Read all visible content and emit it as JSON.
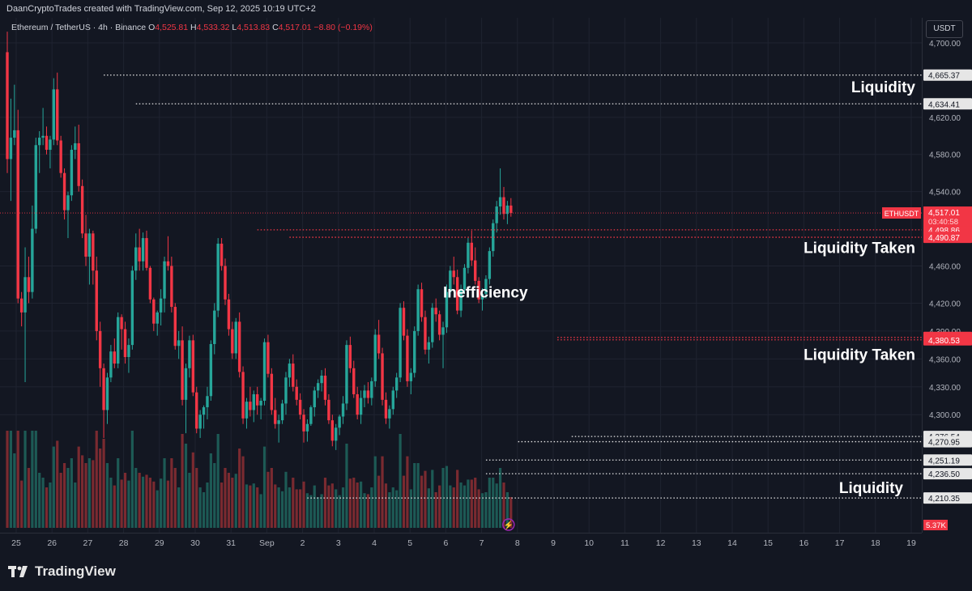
{
  "attribution": "DaanCryptoTrades created with TradingView.com, Sep 12, 2025 10:19 UTC+2",
  "legend": {
    "symbol": "Ethereum / TetherUS · 4h · Binance",
    "o_label": "O",
    "o": "4,525.81",
    "h_label": "H",
    "h": "4,533.32",
    "l_label": "L",
    "l": "4,513.83",
    "c_label": "C",
    "c": "4,517.01",
    "change": "−8.80 (−0.19%)"
  },
  "currency_button": "USDT",
  "brand": "TradingView",
  "brand_icon": "tradingview-logo-icon",
  "colors": {
    "up": "#26a69a",
    "down": "#f23645",
    "background": "#131722",
    "grid": "#1f2330"
  },
  "chart_data": {
    "type": "candlestick",
    "symbol": "ETHUSDT",
    "timeframe": "4h",
    "ylim": [
      4180,
      4720
    ],
    "x_ticks": [
      "25",
      "26",
      "27",
      "28",
      "29",
      "30",
      "31",
      "Sep",
      "2",
      "3",
      "4",
      "5",
      "6",
      "7",
      "8",
      "9",
      "10",
      "11",
      "12",
      "13",
      "14",
      "15",
      "16",
      "17",
      "18",
      "19"
    ],
    "y_ticks": [
      "4,700.00",
      "4,620.00",
      "4,580.00",
      "4,540.00",
      "4,460.00",
      "4,420.00",
      "4,390.00",
      "4,360.00",
      "4,330.00",
      "4,300.00"
    ],
    "y_tick_values": [
      4700,
      4620,
      4580,
      4540,
      4460,
      4420,
      4390,
      4360,
      4330,
      4300
    ],
    "price_tags": [
      {
        "text": "4,665.37",
        "value": 4665.37,
        "style": "level"
      },
      {
        "text": "4,634.41",
        "value": 4634.41,
        "style": "level"
      },
      {
        "text": "4,498.86",
        "value": 4498.86,
        "style": "red"
      },
      {
        "text": "4,490.87",
        "value": 4490.87,
        "style": "red"
      },
      {
        "text": "4,383.12",
        "value": 4383.12,
        "style": "red"
      },
      {
        "text": "4,380.53",
        "value": 4380.53,
        "style": "red"
      },
      {
        "text": "4,276.54",
        "value": 4276.54,
        "style": "level"
      },
      {
        "text": "4,270.95",
        "value": 4270.95,
        "style": "level"
      },
      {
        "text": "4,251.19",
        "value": 4251.19,
        "style": "level"
      },
      {
        "text": "4,236.50",
        "value": 4236.5,
        "style": "level"
      },
      {
        "text": "4,210.35",
        "value": 4210.35,
        "style": "level"
      }
    ],
    "current_price": {
      "symbol": "ETHUSDT",
      "price": "4,517.01",
      "value": 4517.01,
      "countdown": "03:40:58"
    },
    "volume_tag": "5.37K",
    "levels": [
      {
        "value": 4665.37,
        "color": "white",
        "start_bar": 27
      },
      {
        "value": 4634.41,
        "color": "white",
        "start_bar": 36
      },
      {
        "value": 4498.86,
        "color": "red",
        "start_bar": 70
      },
      {
        "value": 4490.87,
        "color": "red",
        "start_bar": 79
      },
      {
        "value": 4383.12,
        "color": "red",
        "start_bar": 154
      },
      {
        "value": 4380.53,
        "color": "red",
        "start_bar": 154
      },
      {
        "value": 4276.54,
        "color": "white",
        "start_bar": 158
      },
      {
        "value": 4270.95,
        "color": "white",
        "start_bar": 143
      },
      {
        "value": 4251.19,
        "color": "white",
        "start_bar": 134
      },
      {
        "value": 4236.5,
        "color": "white",
        "start_bar": 134
      },
      {
        "value": 4210.35,
        "color": "white",
        "start_bar": 84
      }
    ],
    "annotations": [
      {
        "text": "Liquidity",
        "value": 4653
      },
      {
        "text": "Liquidity Taken",
        "value": 4480
      },
      {
        "text": "Inefficiency",
        "value": 4432
      },
      {
        "text": "Liquidity Taken",
        "value": 4365
      },
      {
        "text": "Liquidity",
        "value": 4222
      }
    ],
    "ohlc": [
      [
        4690,
        4712,
        4560,
        4575
      ],
      [
        4575,
        4640,
        4530,
        4598
      ],
      [
        4598,
        4655,
        4590,
        4606
      ],
      [
        4606,
        4628,
        4420,
        4425
      ],
      [
        4425,
        4432,
        4395,
        4410
      ],
      [
        4410,
        4480,
        4335,
        4448
      ],
      [
        4448,
        4470,
        4420,
        4432
      ],
      [
        4432,
        4525,
        4425,
        4500
      ],
      [
        4500,
        4598,
        4495,
        4590
      ],
      [
        4590,
        4605,
        4560,
        4598
      ],
      [
        4598,
        4630,
        4590,
        4600
      ],
      [
        4600,
        4610,
        4580,
        4585
      ],
      [
        4585,
        4600,
        4565,
        4596
      ],
      [
        4596,
        4662,
        4590,
        4650
      ],
      [
        4650,
        4668,
        4590,
        4595
      ],
      [
        4595,
        4600,
        4555,
        4560
      ],
      [
        4560,
        4565,
        4510,
        4520
      ],
      [
        4520,
        4540,
        4490,
        4536
      ],
      [
        4536,
        4590,
        4530,
        4585
      ],
      [
        4585,
        4610,
        4575,
        4592
      ],
      [
        4592,
        4612,
        4540,
        4546
      ],
      [
        4546,
        4553,
        4490,
        4495
      ],
      [
        4495,
        4515,
        4460,
        4470
      ],
      [
        4470,
        4500,
        4440,
        4495
      ],
      [
        4495,
        4498,
        4440,
        4455
      ],
      [
        4455,
        4470,
        4380,
        4390
      ],
      [
        4390,
        4400,
        4330,
        4350
      ],
      [
        4350,
        4355,
        4275,
        4305
      ],
      [
        4305,
        4345,
        4290,
        4340
      ],
      [
        4340,
        4375,
        4335,
        4368
      ],
      [
        4368,
        4382,
        4350,
        4355
      ],
      [
        4355,
        4410,
        4350,
        4405
      ],
      [
        4405,
        4408,
        4370,
        4392
      ],
      [
        4392,
        4400,
        4355,
        4362
      ],
      [
        4362,
        4382,
        4345,
        4375
      ],
      [
        4375,
        4460,
        4370,
        4455
      ],
      [
        4455,
        4495,
        4445,
        4480
      ],
      [
        4480,
        4500,
        4455,
        4465
      ],
      [
        4465,
        4496,
        4455,
        4490
      ],
      [
        4490,
        4498,
        4455,
        4458
      ],
      [
        4458,
        4460,
        4420,
        4424
      ],
      [
        4424,
        4426,
        4390,
        4398
      ],
      [
        4398,
        4412,
        4385,
        4410
      ],
      [
        4410,
        4435,
        4396,
        4425
      ],
      [
        4425,
        4470,
        4410,
        4465
      ],
      [
        4465,
        4492,
        4455,
        4460
      ],
      [
        4460,
        4470,
        4410,
        4416
      ],
      [
        4416,
        4420,
        4370,
        4374
      ],
      [
        4374,
        4390,
        4360,
        4380
      ],
      [
        4380,
        4395,
        4310,
        4316
      ],
      [
        4316,
        4355,
        4280,
        4350
      ],
      [
        4350,
        4385,
        4340,
        4380
      ],
      [
        4380,
        4386,
        4320,
        4324
      ],
      [
        4324,
        4330,
        4280,
        4285
      ],
      [
        4285,
        4305,
        4275,
        4300
      ],
      [
        4300,
        4310,
        4285,
        4308
      ],
      [
        4308,
        4330,
        4295,
        4320
      ],
      [
        4320,
        4380,
        4315,
        4376
      ],
      [
        4376,
        4420,
        4365,
        4412
      ],
      [
        4412,
        4490,
        4405,
        4484
      ],
      [
        4484,
        4490,
        4455,
        4460
      ],
      [
        4460,
        4468,
        4418,
        4424
      ],
      [
        4424,
        4430,
        4385,
        4392
      ],
      [
        4392,
        4400,
        4360,
        4366
      ],
      [
        4366,
        4404,
        4360,
        4400
      ],
      [
        4400,
        4410,
        4340,
        4346
      ],
      [
        4346,
        4352,
        4290,
        4296
      ],
      [
        4296,
        4318,
        4285,
        4314
      ],
      [
        4314,
        4330,
        4298,
        4305
      ],
      [
        4305,
        4326,
        4292,
        4322
      ],
      [
        4322,
        4330,
        4300,
        4310
      ],
      [
        4310,
        4318,
        4295,
        4315
      ],
      [
        4315,
        4382,
        4310,
        4378
      ],
      [
        4378,
        4386,
        4340,
        4344
      ],
      [
        4344,
        4350,
        4300,
        4305
      ],
      [
        4305,
        4318,
        4285,
        4290
      ],
      [
        4290,
        4300,
        4270,
        4294
      ],
      [
        4294,
        4316,
        4290,
        4312
      ],
      [
        4312,
        4346,
        4300,
        4340
      ],
      [
        4340,
        4360,
        4330,
        4355
      ],
      [
        4355,
        4365,
        4325,
        4330
      ],
      [
        4330,
        4338,
        4310,
        4316
      ],
      [
        4316,
        4323,
        4295,
        4300
      ],
      [
        4300,
        4306,
        4270,
        4282
      ],
      [
        4282,
        4295,
        4271,
        4290
      ],
      [
        4290,
        4310,
        4288,
        4308
      ],
      [
        4308,
        4330,
        4298,
        4326
      ],
      [
        4326,
        4338,
        4318,
        4334
      ],
      [
        4334,
        4348,
        4325,
        4342
      ],
      [
        4342,
        4350,
        4310,
        4316
      ],
      [
        4316,
        4322,
        4290,
        4294
      ],
      [
        4294,
        4300,
        4266,
        4272
      ],
      [
        4272,
        4290,
        4262,
        4286
      ],
      [
        4286,
        4300,
        4278,
        4298
      ],
      [
        4298,
        4320,
        4290,
        4312
      ],
      [
        4312,
        4380,
        4305,
        4375
      ],
      [
        4375,
        4384,
        4345,
        4350
      ],
      [
        4350,
        4358,
        4318,
        4322
      ],
      [
        4322,
        4330,
        4295,
        4300
      ],
      [
        4300,
        4326,
        4290,
        4318
      ],
      [
        4318,
        4332,
        4308,
        4326
      ],
      [
        4326,
        4335,
        4312,
        4318
      ],
      [
        4318,
        4340,
        4310,
        4336
      ],
      [
        4336,
        4392,
        4330,
        4386
      ],
      [
        4386,
        4402,
        4360,
        4366
      ],
      [
        4366,
        4372,
        4310,
        4316
      ],
      [
        4316,
        4324,
        4290,
        4296
      ],
      [
        4296,
        4310,
        4285,
        4306
      ],
      [
        4306,
        4330,
        4300,
        4326
      ],
      [
        4326,
        4345,
        4318,
        4340
      ],
      [
        4340,
        4420,
        4335,
        4415
      ],
      [
        4415,
        4422,
        4380,
        4385
      ],
      [
        4385,
        4392,
        4330,
        4336
      ],
      [
        4336,
        4350,
        4322,
        4345
      ],
      [
        4345,
        4395,
        4340,
        4390
      ],
      [
        4390,
        4440,
        4385,
        4435
      ],
      [
        4435,
        4442,
        4400,
        4405
      ],
      [
        4405,
        4412,
        4365,
        4370
      ],
      [
        4370,
        4384,
        4355,
        4378
      ],
      [
        4378,
        4420,
        4372,
        4415
      ],
      [
        4415,
        4425,
        4400,
        4408
      ],
      [
        4408,
        4412,
        4380,
        4386
      ],
      [
        4386,
        4400,
        4350,
        4394
      ],
      [
        4394,
        4440,
        4388,
        4432
      ],
      [
        4432,
        4460,
        4428,
        4455
      ],
      [
        4455,
        4470,
        4440,
        4448
      ],
      [
        4448,
        4456,
        4408,
        4412
      ],
      [
        4412,
        4440,
        4405,
        4435
      ],
      [
        4435,
        4462,
        4430,
        4458
      ],
      [
        4458,
        4490,
        4452,
        4485
      ],
      [
        4485,
        4498,
        4460,
        4466
      ],
      [
        4466,
        4480,
        4440,
        4444
      ],
      [
        4444,
        4448,
        4420,
        4424
      ],
      [
        4424,
        4436,
        4412,
        4430
      ],
      [
        4430,
        4450,
        4425,
        4446
      ],
      [
        4446,
        4480,
        4440,
        4476
      ],
      [
        4476,
        4510,
        4470,
        4506
      ],
      [
        4506,
        4530,
        4496,
        4524
      ],
      [
        4524,
        4565,
        4515,
        4534
      ],
      [
        4534,
        4545,
        4510,
        4516
      ],
      [
        4516,
        4530,
        4505,
        4525
      ],
      [
        4525,
        4533,
        4513,
        4517
      ]
    ],
    "volume_max": 6000
  }
}
